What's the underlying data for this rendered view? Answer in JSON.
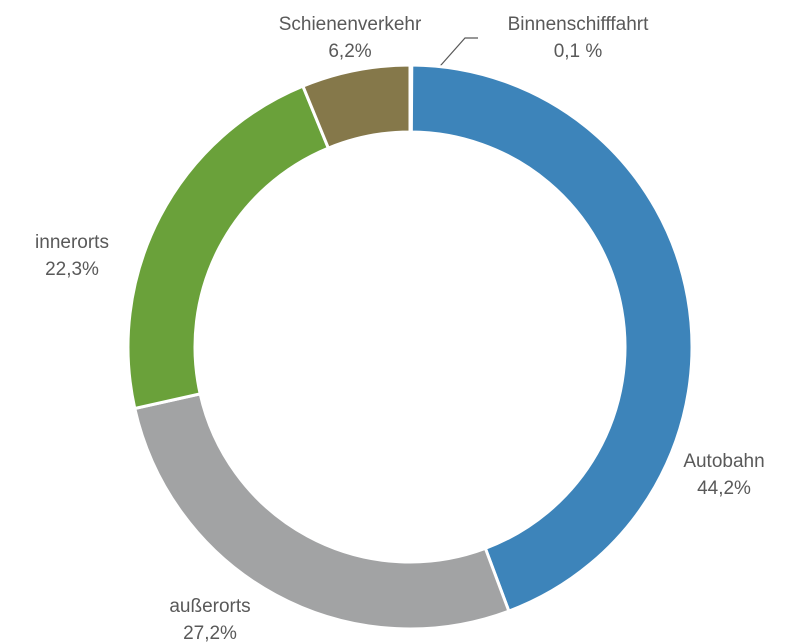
{
  "chart_data": {
    "type": "donut",
    "categories": [
      "Binnenschifffahrt",
      "Autobahn",
      "außerorts",
      "innerorts",
      "Schienenverkehr"
    ],
    "values": [
      0.1,
      44.2,
      27.2,
      22.3,
      6.2
    ],
    "value_labels": [
      "0,1 %",
      "44,2%",
      "27,2%",
      "22,3%",
      "6,2%"
    ],
    "colors": [
      "#2f5f8a",
      "#3d84ba",
      "#a2a3a4",
      "#6aa13a",
      "#85784a"
    ]
  }
}
